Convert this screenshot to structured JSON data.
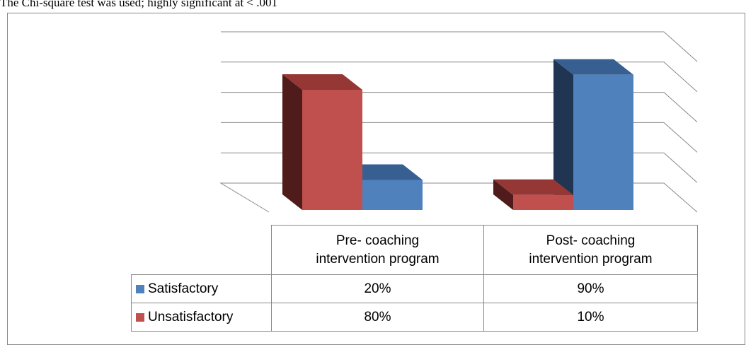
{
  "chart_data": {
    "type": "bar3d",
    "note": "The Chi-square test was used; highly significant at < .001",
    "categories": [
      "Pre- coaching intervention program",
      "Post- coaching intervention program"
    ],
    "series": [
      {
        "name": "Satisfactory",
        "color": "#4f81bd",
        "values": [
          20,
          90
        ],
        "value_labels": [
          "20%",
          "90%"
        ]
      },
      {
        "name": "Unsatisfactory",
        "color": "#c0504d",
        "values": [
          80,
          10
        ],
        "value_labels": [
          "80%",
          "10%"
        ]
      }
    ],
    "ylim": [
      0,
      100
    ],
    "yticks": [
      0,
      20,
      40,
      60,
      80,
      100
    ],
    "grid": true
  }
}
